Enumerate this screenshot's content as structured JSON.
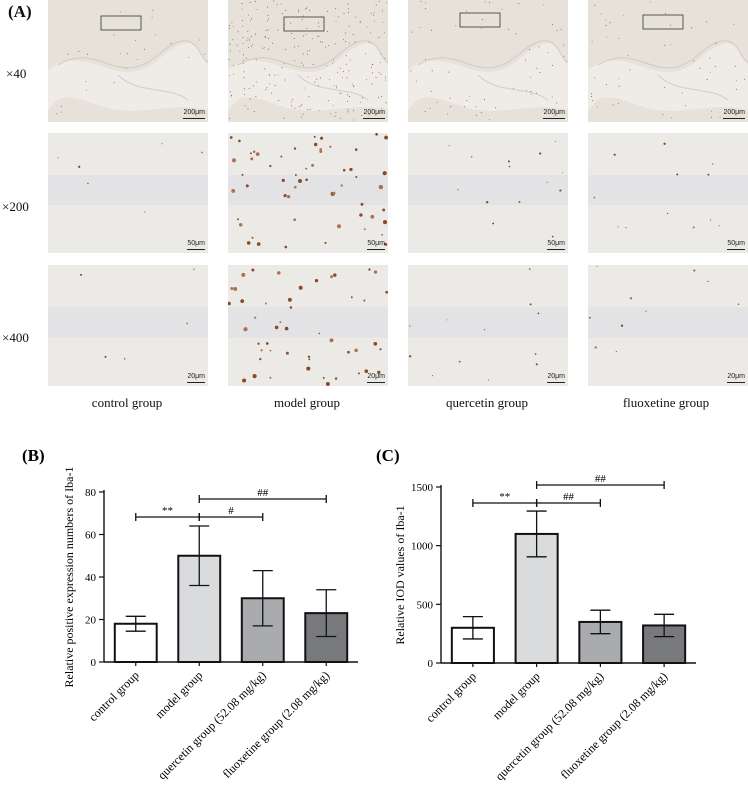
{
  "panelA": {
    "label": "(A)",
    "rows": [
      {
        "magnification": "×40",
        "scale_bar": "200μm"
      },
      {
        "magnification": "×200",
        "scale_bar": "50μm"
      },
      {
        "magnification": "×400",
        "scale_bar": "20μm"
      }
    ],
    "columns": [
      "control group",
      "model group",
      "quercetin group",
      "fluoxetine group"
    ]
  },
  "chart_data": [
    {
      "panel_label": "(B)",
      "type": "bar",
      "ylabel": "Relative positive expression numbers of Iba-1",
      "categories": [
        "control group",
        "model group",
        "quercetin group (52.08 mg/kg)",
        "fluoxetine group (2.08 mg/kg)"
      ],
      "values": [
        18,
        50,
        30,
        23
      ],
      "errors": [
        3.5,
        14,
        13,
        11
      ],
      "colors": [
        "#ffffff",
        "#d9dbdd",
        "#a9abae",
        "#77797c"
      ],
      "ylim": [
        0,
        80
      ],
      "yticks": [
        0,
        20,
        40,
        60,
        80
      ],
      "significance": [
        {
          "from": 0,
          "to": 1,
          "label": "**"
        },
        {
          "from": 1,
          "to": 2,
          "label": "#"
        },
        {
          "from": 1,
          "to": 3,
          "label": "##"
        }
      ]
    },
    {
      "panel_label": "(C)",
      "type": "bar",
      "ylabel": "Relative IOD values of Iba-1",
      "categories": [
        "control group",
        "model group",
        "quercetin group (52.08 mg/kg)",
        "fluoxetine group (2.08 mg/kg)"
      ],
      "values": [
        300,
        1100,
        350,
        320
      ],
      "errors": [
        95,
        195,
        100,
        95
      ],
      "colors": [
        "#ffffff",
        "#d9dbdd",
        "#a9abae",
        "#77797c"
      ],
      "ylim": [
        0,
        1500
      ],
      "yticks": [
        0,
        500,
        1000,
        1500
      ],
      "significance": [
        {
          "from": 0,
          "to": 1,
          "label": "**"
        },
        {
          "from": 1,
          "to": 2,
          "label": "##"
        },
        {
          "from": 1,
          "to": 3,
          "label": "##"
        }
      ]
    }
  ]
}
